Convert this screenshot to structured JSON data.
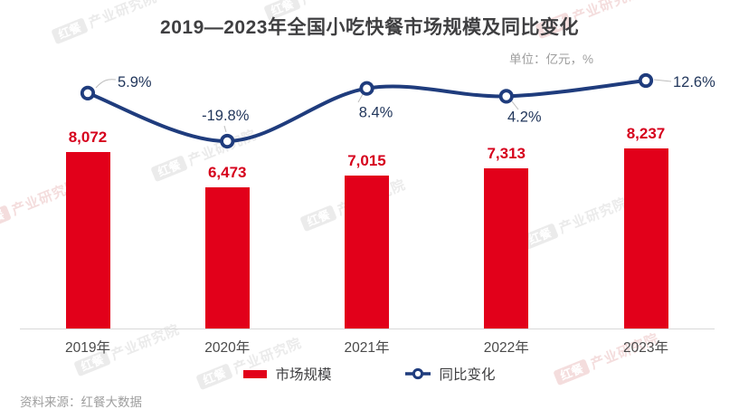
{
  "title": "2019—2023年全国小吃快餐市场规模及同比变化",
  "unit_note": "单位：亿元，%",
  "source": "资料来源：红餐大数据",
  "watermark": {
    "logo": "红餐",
    "text": "产业研究院"
  },
  "legend": {
    "bar_label": "市场规模",
    "line_label": "同比变化"
  },
  "colors": {
    "bar": "#e2001a",
    "bar_label_text": "#d6001c",
    "line": "#1f3c7d",
    "percent_label_text": "#22375c",
    "title_text": "#3f3f41",
    "axis_line": "#d9d9d9",
    "muted_text": "#9e9e9e"
  },
  "chart_data": {
    "type": "bar+line combo",
    "title": "2019—2023年全国小吃快餐市场规模及同比变化",
    "unit": "亿元, %",
    "categories": [
      "2019年",
      "2020年",
      "2021年",
      "2022年",
      "2023年"
    ],
    "series": [
      {
        "name": "市场规模",
        "type": "bar",
        "unit": "亿元",
        "values": [
          8072,
          6473,
          7015,
          7313,
          8237
        ],
        "labels": [
          "8,072",
          "6,473",
          "7,015",
          "7,313",
          "8,237"
        ]
      },
      {
        "name": "同比变化",
        "type": "line",
        "unit": "%",
        "values": [
          5.9,
          -19.8,
          8.4,
          4.2,
          12.6
        ],
        "labels": [
          "5.9%",
          "-19.8%",
          "8.4%",
          "4.2%",
          "12.6%"
        ]
      }
    ],
    "ylim_bar": [
      0,
      9000
    ],
    "grid": false,
    "legend_position": "bottom"
  }
}
